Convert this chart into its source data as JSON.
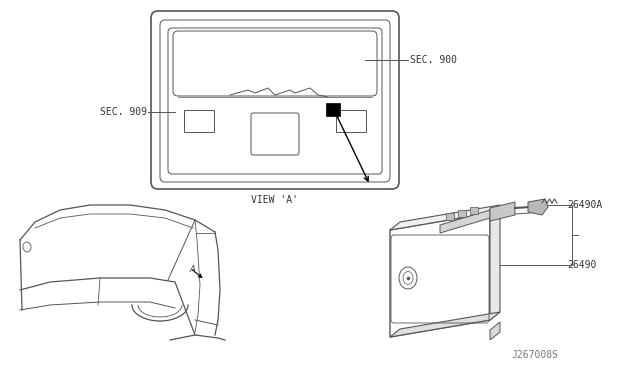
{
  "bg_color": "#ffffff",
  "line_color": "#555555",
  "text_color": "#333333",
  "label_sec900": "SEC. 900",
  "label_sec909": "SEC. 909",
  "label_viewa": "VIEW 'A'",
  "label_26490a": "26490A",
  "label_26490": "26490",
  "label_j267008s": "J267008S",
  "fig_width": 6.4,
  "fig_height": 3.72,
  "dpi": 100
}
